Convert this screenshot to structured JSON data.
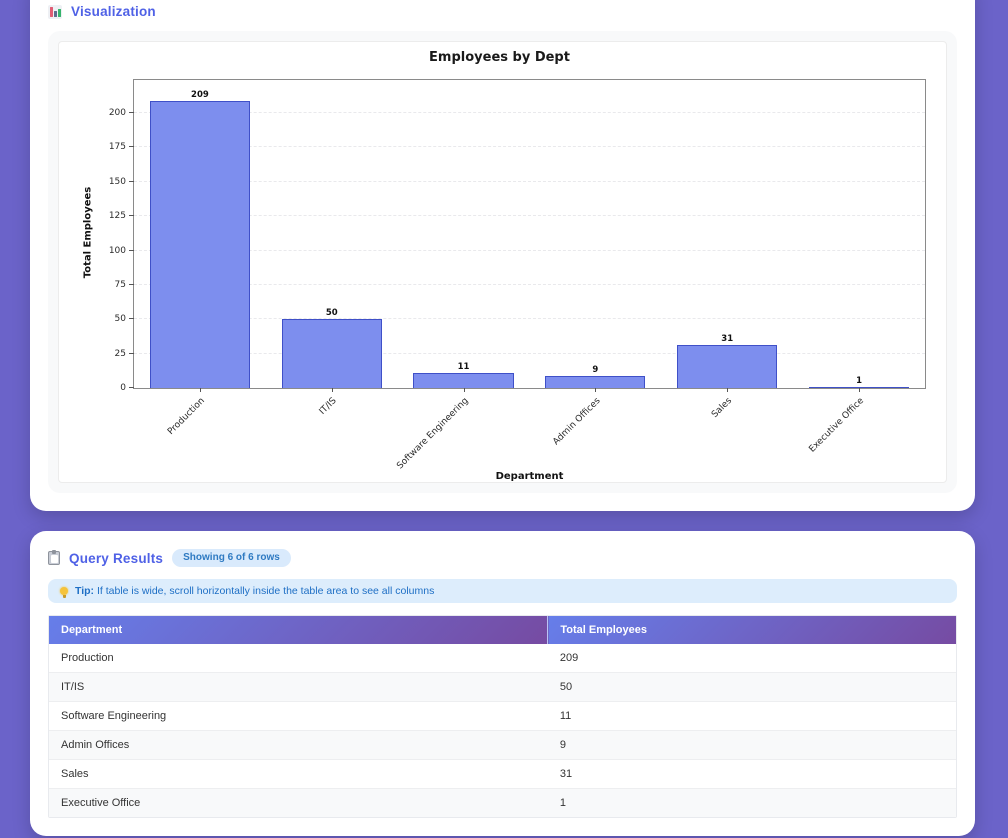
{
  "page": {
    "background_color": "#6b63c9",
    "accent_color": "#4f61e6"
  },
  "visualization_section": {
    "title": "Visualization",
    "icon": "bar-chart-icon"
  },
  "chart_data": {
    "type": "bar",
    "title": "Employees by Dept",
    "xlabel": "Department",
    "ylabel": "Total Employees",
    "categories": [
      "Production",
      "IT/IS",
      "Software Engineering",
      "Admin Offices",
      "Sales",
      "Executive Office"
    ],
    "values": [
      209,
      50,
      11,
      9,
      31,
      1
    ],
    "yticks": [
      0,
      25,
      50,
      75,
      100,
      125,
      150,
      175,
      200
    ],
    "ylim": [
      0,
      224
    ],
    "grid": "horizontal-dashed",
    "legend": "none",
    "bar_color": "#7d8eee",
    "bar_border_color": "#3f50c8",
    "xtick_rotation": 45
  },
  "results_section": {
    "title": "Query Results",
    "icon": "clipboard-icon",
    "badge": "Showing 6 of 6 rows",
    "tip_label": "Tip:",
    "tip_text": "If table is wide, scroll horizontally inside the table area to see all columns",
    "table": {
      "columns": [
        "Department",
        "Total Employees"
      ],
      "rows": [
        [
          "Production",
          "209"
        ],
        [
          "IT/IS",
          "50"
        ],
        [
          "Software Engineering",
          "11"
        ],
        [
          "Admin Offices",
          "9"
        ],
        [
          "Sales",
          "31"
        ],
        [
          "Executive Office",
          "1"
        ]
      ]
    }
  }
}
